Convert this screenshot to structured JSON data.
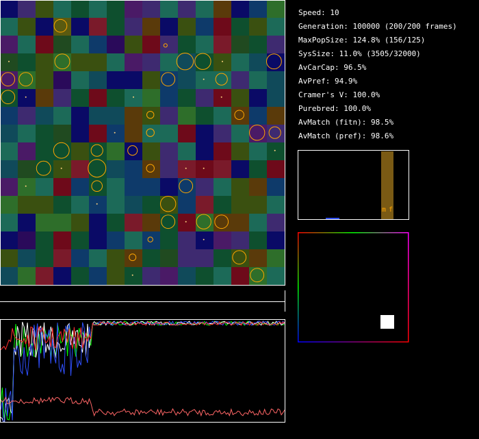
{
  "stats": {
    "speed": "Speed: 10",
    "generation": "Generation: 100000 (200/200 frames)",
    "maxpopsize": "MaxPopSize: 124.8% (156/125)",
    "syssize": "SysSize: 11.0% (3505/32000)",
    "avcarcap": "AvCarCap: 96.5%",
    "avpref": "AvPref: 94.9%",
    "cramers_v": "Cramer's V: 100.0%",
    "purebred": "Purebred: 100.0%",
    "avmatch_fitn": "AvMatch (fitn): 98.5%",
    "avmatch_pref": "AvMatch (pref): 98.6%"
  },
  "histogram": {
    "label_m": "m",
    "label_f": "f",
    "bar_color": "#7a5a14",
    "label_color": "#ffa500"
  },
  "colors": {
    "palette": [
      "#5a3a0a",
      "#123a7a",
      "#0e4f2e",
      "#1c6a58",
      "#3a5010",
      "#2a0a5a",
      "#6e0a1a",
      "#0a0a66",
      "#204a20",
      "#4a1a66",
      "#104a5a",
      "#7a1a2a",
      "#2e6e2a",
      "#3e2a70",
      "#0e3a6a",
      "#5a5a10"
    ],
    "circle_stroke": "#ffa500",
    "dot": "#ffd27f",
    "white": "#ffffff"
  },
  "grid": {
    "rows": 16,
    "cols": 16,
    "cells": [
      [
        7,
        13,
        4,
        3,
        2,
        3,
        2,
        9,
        13,
        3,
        13,
        3,
        0,
        7,
        14,
        12
      ],
      [
        3,
        4,
        7,
        15,
        7,
        11,
        2,
        13,
        0,
        7,
        4,
        14,
        6,
        2,
        4,
        3
      ],
      [
        9,
        3,
        6,
        8,
        3,
        14,
        5,
        4,
        6,
        13,
        2,
        3,
        11,
        8,
        2,
        13
      ],
      [
        8,
        2,
        4,
        12,
        4,
        4,
        3,
        9,
        13,
        3,
        10,
        2,
        4,
        3,
        10,
        7
      ],
      [
        9,
        12,
        4,
        5,
        3,
        10,
        7,
        7,
        4,
        14,
        10,
        3,
        3,
        13,
        3,
        10
      ],
      [
        2,
        7,
        0,
        13,
        2,
        6,
        2,
        3,
        12,
        14,
        2,
        13,
        6,
        4,
        7,
        10
      ],
      [
        14,
        13,
        10,
        3,
        7,
        10,
        10,
        0,
        4,
        13,
        12,
        2,
        3,
        0,
        14,
        0
      ],
      [
        10,
        3,
        2,
        8,
        7,
        6,
        14,
        0,
        3,
        3,
        6,
        7,
        13,
        3,
        9,
        13
      ],
      [
        3,
        9,
        2,
        2,
        4,
        2,
        12,
        7,
        4,
        13,
        3,
        7,
        6,
        4,
        3,
        2
      ],
      [
        10,
        8,
        2,
        4,
        11,
        2,
        10,
        14,
        0,
        13,
        11,
        6,
        11,
        7,
        2,
        6
      ],
      [
        9,
        12,
        3,
        6,
        14,
        2,
        3,
        14,
        14,
        7,
        14,
        13,
        3,
        4,
        0,
        14
      ],
      [
        12,
        4,
        4,
        2,
        3,
        14,
        3,
        10,
        2,
        4,
        14,
        11,
        2,
        4,
        4,
        3
      ],
      [
        3,
        7,
        12,
        12,
        4,
        7,
        2,
        11,
        0,
        2,
        6,
        12,
        0,
        0,
        3,
        13
      ],
      [
        7,
        5,
        2,
        6,
        2,
        7,
        14,
        3,
        14,
        2,
        13,
        7,
        9,
        13,
        2,
        7
      ],
      [
        4,
        10,
        2,
        11,
        14,
        3,
        4,
        0,
        2,
        8,
        13,
        13,
        2,
        4,
        0,
        12
      ],
      [
        10,
        12,
        11,
        7,
        2,
        14,
        4,
        2,
        13,
        9,
        10,
        2,
        3,
        6,
        12,
        3
      ]
    ],
    "circles": [
      [
        3.4,
        1.45,
        0.36
      ],
      [
        9.3,
        2.55,
        0.1
      ],
      [
        0.5,
        3.45,
        0.05
      ],
      [
        3.5,
        3.45,
        0.42
      ],
      [
        10.4,
        3.45,
        0.47
      ],
      [
        11.4,
        3.45,
        0.45
      ],
      [
        12.5,
        3.45,
        0.05
      ],
      [
        15.4,
        3.45,
        0.42
      ],
      [
        0.45,
        4.45,
        0.38
      ],
      [
        1.45,
        4.45,
        0.38
      ],
      [
        9.45,
        4.45,
        0.38
      ],
      [
        11.45,
        4.45,
        0.05
      ],
      [
        12.45,
        4.45,
        0.33
      ],
      [
        0.45,
        5.45,
        0.38
      ],
      [
        1.45,
        5.45,
        0.05
      ],
      [
        7.5,
        5.45,
        0.05
      ],
      [
        12.45,
        5.45,
        0.05
      ],
      [
        8.45,
        6.45,
        0.2
      ],
      [
        13.45,
        6.45,
        0.26
      ],
      [
        6.45,
        7.45,
        0.05
      ],
      [
        8.45,
        7.45,
        0.22
      ],
      [
        14.45,
        7.45,
        0.43
      ],
      [
        15.45,
        7.45,
        0.33
      ],
      [
        3.45,
        8.45,
        0.44
      ],
      [
        5.45,
        8.45,
        0.33
      ],
      [
        7.45,
        8.45,
        0.27
      ],
      [
        15.45,
        8.45,
        0.05
      ],
      [
        2.45,
        9.45,
        0.4
      ],
      [
        3.45,
        9.45,
        0.05
      ],
      [
        5.45,
        9.45,
        0.5
      ],
      [
        8.45,
        9.45,
        0.22
      ],
      [
        10.45,
        9.45,
        0.05
      ],
      [
        11.45,
        9.45,
        0.05
      ],
      [
        1.45,
        10.45,
        0.05
      ],
      [
        5.45,
        10.45,
        0.3
      ],
      [
        10.45,
        10.45,
        0.38
      ],
      [
        5.45,
        11.45,
        0.05
      ],
      [
        9.45,
        11.45,
        0.43
      ],
      [
        9.45,
        12.45,
        0.38
      ],
      [
        10.45,
        12.45,
        0.05
      ],
      [
        11.45,
        12.45,
        0.41
      ],
      [
        12.45,
        12.45,
        0.38
      ],
      [
        8.45,
        13.45,
        0.14
      ],
      [
        11.45,
        13.45,
        0.05
      ],
      [
        7.45,
        14.45,
        0.19
      ],
      [
        13.45,
        14.45,
        0.38
      ],
      [
        7.45,
        15.45,
        0.05
      ],
      [
        14.45,
        15.45,
        0.38
      ]
    ]
  },
  "graph": {
    "series": [
      {
        "name": "",
        "color": "#00ff00"
      },
      {
        "name": "",
        "color": "#ffffff"
      },
      {
        "name": "",
        "color": "#3050ff"
      },
      {
        "name": "",
        "color": "#ff3030"
      },
      {
        "name": "",
        "color": "#ff6666"
      }
    ]
  }
}
